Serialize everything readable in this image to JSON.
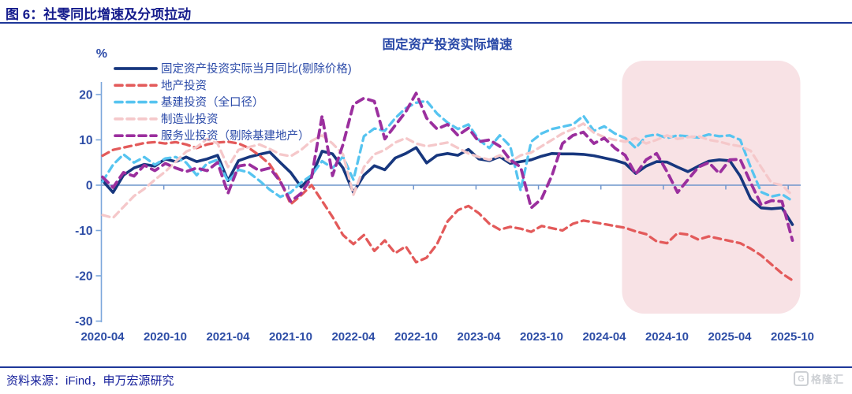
{
  "header": {
    "title": "图 6：社零同比增速及分项拉动"
  },
  "chart": {
    "title": "固定资产投资实际增速",
    "y_unit": "%"
  },
  "chart_data": {
    "type": "line",
    "title": "固定资产投资实际增速",
    "y_unit": "%",
    "x_start": "2020-04",
    "x_end": "2025-10",
    "x_frequency": "monthly",
    "x_tick_labels": [
      "2020-04",
      "2020-10",
      "2021-04",
      "2021-10",
      "2022-04",
      "2022-10",
      "2023-04",
      "2023-10",
      "2024-04",
      "2024-10",
      "2025-04",
      "2025-10"
    ],
    "y_ticks": [
      20,
      10,
      0,
      -10,
      -20,
      -30
    ],
    "ylim": [
      -30,
      23
    ],
    "grid": false,
    "legend_position": "top-left",
    "highlight_region": {
      "from": "2024-06",
      "to": "2025-10",
      "color": "#f8e2e5"
    },
    "axis_color": "#7ba7dc",
    "zero_line_color": "#6f95cc",
    "tick_label_color": "#2d4da6",
    "series": [
      {
        "key": "fai-real-monthly-yoy",
        "name": "固定资产投资实际当月同比(剔除价格)",
        "color": "#17377e",
        "style": "solid",
        "values": [
          1.0,
          -1.6,
          2.2,
          3.8,
          4.6,
          4.2,
          5.8,
          5.2,
          6.2,
          5.2,
          5.8,
          6.6,
          1.0,
          5.4,
          6.2,
          6.8,
          7.3,
          5.0,
          2.8,
          -0.4,
          2.0,
          7.5,
          6.9,
          3.8,
          -1.6,
          2.2,
          4.3,
          3.4,
          6.0,
          7.0,
          8.3,
          4.9,
          6.6,
          7.0,
          6.6,
          7.9,
          5.8,
          5.4,
          6.3,
          4.8,
          5.2,
          5.6,
          6.4,
          7.0,
          6.9,
          6.9,
          6.8,
          6.5,
          6.0,
          5.5,
          4.8,
          2.6,
          4.2,
          5.2,
          5.1,
          4.0,
          3.0,
          4.2,
          5.3,
          5.6,
          5.4,
          2.0,
          -3.0,
          -5.0,
          -5.2,
          -5.0,
          -8.7
        ]
      },
      {
        "key": "real-estate-investment",
        "name": "地产投资",
        "color": "#e35a5a",
        "style": "dashed",
        "values": [
          6.5,
          7.8,
          8.3,
          8.8,
          9.3,
          9.5,
          9.2,
          9.5,
          9.0,
          8.2,
          9.0,
          9.4,
          9.6,
          9.2,
          8.2,
          6.6,
          4.6,
          1.0,
          -4.2,
          -2.2,
          0.0,
          -3.5,
          -7.0,
          -11.0,
          -13.0,
          -11.0,
          -14.5,
          -12.2,
          -15.0,
          -13.5,
          -17.0,
          -16.0,
          -13.0,
          -8.0,
          -5.5,
          -4.6,
          -6.2,
          -8.5,
          -9.8,
          -9.2,
          -9.6,
          -10.3,
          -9.0,
          -9.5,
          -10.0,
          -8.5,
          -7.8,
          -8.2,
          -8.6,
          -9.0,
          -9.4,
          -10.2,
          -10.8,
          -12.4,
          -12.8,
          -10.6,
          -10.9,
          -12.0,
          -11.3,
          -11.8,
          -12.3,
          -12.8,
          -14.0,
          -15.5,
          -17.5,
          -19.5,
          -21.0
        ]
      },
      {
        "key": "infrastructure-investment",
        "name": "基建投资（全口径）",
        "color": "#56c4f0",
        "style": "dashed",
        "values": [
          0.8,
          4.5,
          6.8,
          5.0,
          6.2,
          4.5,
          5.9,
          6.2,
          5.0,
          2.2,
          4.8,
          5.6,
          0.8,
          3.4,
          2.8,
          1.0,
          -1.0,
          -2.6,
          -1.6,
          0.6,
          2.2,
          5.3,
          3.8,
          6.3,
          1.2,
          10.8,
          12.5,
          12.0,
          14.8,
          17.0,
          18.2,
          18.6,
          15.8,
          13.8,
          12.4,
          13.4,
          10.0,
          8.2,
          11.0,
          8.6,
          -1.2,
          9.6,
          11.4,
          12.4,
          12.9,
          13.4,
          15.3,
          12.0,
          13.0,
          11.4,
          10.4,
          8.2,
          10.8,
          11.2,
          10.4,
          11.0,
          10.8,
          10.5,
          11.2,
          10.8,
          11.0,
          10.0,
          4.0,
          -1.5,
          -2.5,
          -2.0,
          -3.5
        ]
      },
      {
        "key": "manufacturing-investment",
        "name": "制造业投资",
        "color": "#f5c8ca",
        "style": "dashed",
        "values": [
          -6.6,
          -7.2,
          -4.8,
          -2.4,
          -0.8,
          1.2,
          3.0,
          5.2,
          7.4,
          8.4,
          10.2,
          9.2,
          4.0,
          7.8,
          8.4,
          9.0,
          8.0,
          6.8,
          6.4,
          7.8,
          9.8,
          11.0,
          9.2,
          6.8,
          -2.1,
          4.0,
          6.8,
          7.8,
          9.4,
          10.4,
          9.2,
          8.6,
          9.0,
          9.4,
          8.2,
          7.0,
          6.2,
          5.6,
          6.6,
          5.2,
          6.6,
          7.2,
          8.6,
          10.0,
          11.4,
          12.4,
          13.6,
          11.6,
          10.6,
          10.0,
          9.6,
          10.4,
          9.2,
          10.0,
          11.0,
          10.2,
          10.6,
          10.8,
          10.0,
          9.6,
          9.0,
          8.6,
          7.6,
          4.0,
          0.5,
          0.0,
          -2.3
        ]
      },
      {
        "key": "services-investment",
        "name": "服务业投资（剔除基建地产）",
        "color": "#9b2f9e",
        "style": "dashed",
        "values": [
          1.8,
          -0.5,
          2.8,
          2.0,
          4.4,
          3.2,
          4.8,
          3.8,
          3.0,
          3.8,
          3.2,
          5.0,
          -1.8,
          4.2,
          4.6,
          3.2,
          3.8,
          0.8,
          -3.6,
          -1.8,
          1.8,
          15.3,
          2.1,
          9.0,
          17.8,
          19.2,
          18.5,
          10.2,
          13.2,
          16.2,
          20.3,
          14.8,
          12.4,
          13.4,
          11.0,
          12.6,
          9.6,
          10.0,
          8.6,
          5.6,
          4.0,
          -5.0,
          -3.0,
          2.2,
          9.2,
          11.0,
          11.7,
          9.2,
          10.4,
          8.2,
          6.6,
          2.4,
          5.6,
          7.0,
          3.0,
          -1.6,
          1.2,
          4.0,
          5.0,
          2.6,
          5.6,
          5.7,
          0.6,
          -4.3,
          -3.4,
          -3.6,
          -12.2
        ]
      }
    ]
  },
  "footer": {
    "source": "资料来源：iFind，申万宏源研究",
    "logo_text": "格隆汇",
    "logo_letter": "G"
  }
}
